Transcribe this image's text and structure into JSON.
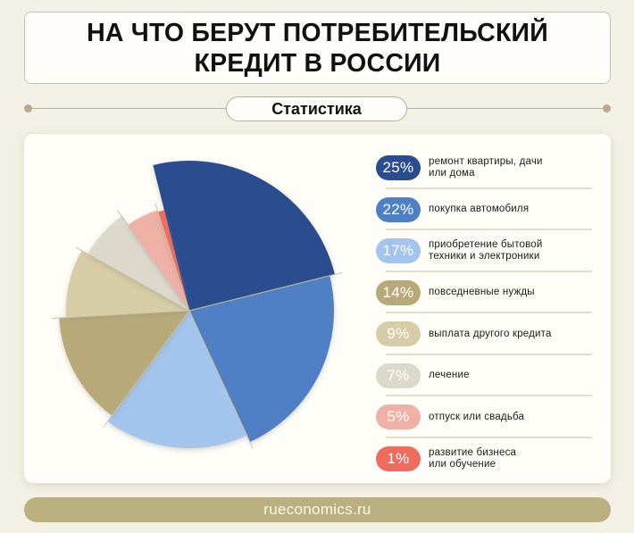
{
  "header": {
    "title_line1": "НА ЧТО БЕРУТ ПОТРЕБИТЕЛЬСКИЙ",
    "title_line2": "КРЕДИТ В РОССИИ",
    "subtitle": "Статистика"
  },
  "footer": {
    "source": "rueconomics.ru"
  },
  "colors": {
    "background": "#f3f0e5",
    "card": "#fefdf8",
    "footer_bar": "#bbaf80",
    "separator": "#b9b095"
  },
  "chart_data": {
    "type": "pie",
    "title": "НА ЧТО БЕРУТ ПОТРЕБИТЕЛЬСКИЙ КРЕДИТ В РОССИИ",
    "subtitle": "Статистика",
    "unit": "%",
    "legend_position": "right",
    "categories": [
      "ремонт квартиры, дачи или дома",
      "покупка автомобиля",
      "приобретение бытовой техники и электроники",
      "повседневные нужды",
      "выплата другого кредита",
      "лечение",
      "отпуск или свадьба",
      "развитие бизнеса или обучение"
    ],
    "values": [
      25,
      22,
      17,
      14,
      9,
      7,
      5,
      1
    ],
    "slices": [
      {
        "value": 25,
        "label": "25%",
        "text": "ремонт квартиры, дачи\nили дома",
        "color": "#2a4d8f",
        "radius": 168
      },
      {
        "value": 22,
        "label": "22%",
        "text": "покупка автомобиля",
        "color": "#4f7fc4",
        "radius": 162
      },
      {
        "value": 17,
        "label": "17%",
        "text": "приобретение бытовой\nтехники и электроники",
        "color": "#a3c4ec",
        "radius": 154
      },
      {
        "value": 14,
        "label": "14%",
        "text": "повседневные нужды",
        "color": "#b8aa78",
        "radius": 146
      },
      {
        "value": 9,
        "label": "9%",
        "text": "выплата другого кредита",
        "color": "#d6cca5",
        "radius": 138
      },
      {
        "value": 7,
        "label": "7%",
        "text": "лечение",
        "color": "#dcd8cc",
        "radius": 130
      },
      {
        "value": 5,
        "label": "5%",
        "text": "отпуск или свадьба",
        "color": "#efb0a5",
        "radius": 118
      },
      {
        "value": 1,
        "label": "1%",
        "text": "развитие бизнеса\nили обучение",
        "color": "#ef6b5e",
        "radius": 116
      }
    ],
    "start_angle_deg": -104,
    "center": [
      185,
      198
    ]
  }
}
